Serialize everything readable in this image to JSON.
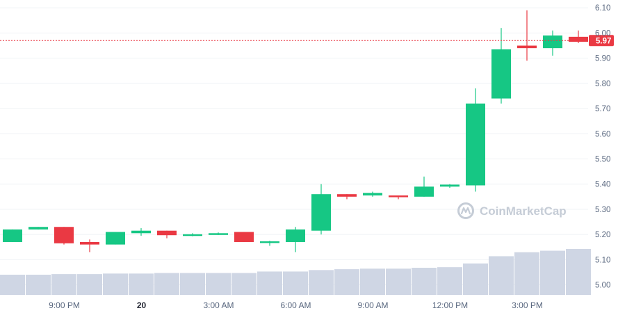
{
  "watermark": "CoinMarketCap",
  "colors": {
    "up": "#16c784",
    "down": "#ea3943",
    "volume": "#cfd6e4",
    "grid": "#eff2f5",
    "axis_text": "#58667e",
    "current_price": "#ea3943"
  },
  "chart_data": {
    "type": "candlestick",
    "y_axis": {
      "ticks": [
        "5.00",
        "5.10",
        "5.20",
        "5.30",
        "5.40",
        "5.50",
        "5.60",
        "5.70",
        "5.80",
        "5.90",
        "6.00",
        "6.10"
      ],
      "ylim": [
        4.96,
        6.12
      ],
      "position": "right"
    },
    "x_axis": {
      "ticks": [
        {
          "label": "9:00 PM",
          "index": 2.5,
          "bold": false
        },
        {
          "label": "20",
          "index": 5.5,
          "bold": true
        },
        {
          "label": "3:00 AM",
          "index": 8.5,
          "bold": false
        },
        {
          "label": "6:00 AM",
          "index": 11.5,
          "bold": false
        },
        {
          "label": "9:00 AM",
          "index": 14.5,
          "bold": false
        },
        {
          "label": "12:00 PM",
          "index": 17.5,
          "bold": false
        },
        {
          "label": "3:00 PM",
          "index": 20.5,
          "bold": false
        }
      ]
    },
    "current_price": "5.97",
    "candles": [
      {
        "o": 5.17,
        "h": 5.22,
        "l": 5.17,
        "c": 5.22
      },
      {
        "o": 5.22,
        "h": 5.23,
        "l": 5.22,
        "c": 5.23
      },
      {
        "o": 5.23,
        "h": 5.23,
        "l": 5.16,
        "c": 5.165
      },
      {
        "o": 5.17,
        "h": 5.18,
        "l": 5.13,
        "c": 5.16
      },
      {
        "o": 5.16,
        "h": 5.21,
        "l": 5.16,
        "c": 5.21
      },
      {
        "o": 5.205,
        "h": 5.225,
        "l": 5.195,
        "c": 5.215
      },
      {
        "o": 5.215,
        "h": 5.215,
        "l": 5.185,
        "c": 5.197
      },
      {
        "o": 5.198,
        "h": 5.205,
        "l": 5.193,
        "c": 5.201
      },
      {
        "o": 5.2,
        "h": 5.208,
        "l": 5.198,
        "c": 5.205
      },
      {
        "o": 5.21,
        "h": 5.21,
        "l": 5.17,
        "c": 5.17
      },
      {
        "o": 5.17,
        "h": 5.175,
        "l": 5.155,
        "c": 5.173
      },
      {
        "o": 5.17,
        "h": 5.23,
        "l": 5.13,
        "c": 5.22
      },
      {
        "o": 5.215,
        "h": 5.4,
        "l": 5.2,
        "c": 5.36
      },
      {
        "o": 5.36,
        "h": 5.36,
        "l": 5.34,
        "c": 5.35
      },
      {
        "o": 5.355,
        "h": 5.37,
        "l": 5.35,
        "c": 5.365
      },
      {
        "o": 5.355,
        "h": 5.355,
        "l": 5.34,
        "c": 5.348
      },
      {
        "o": 5.35,
        "h": 5.43,
        "l": 5.35,
        "c": 5.39
      },
      {
        "o": 5.39,
        "h": 5.4,
        "l": 5.385,
        "c": 5.398
      },
      {
        "o": 5.395,
        "h": 5.78,
        "l": 5.37,
        "c": 5.72
      },
      {
        "o": 5.74,
        "h": 6.02,
        "l": 5.72,
        "c": 5.935
      },
      {
        "o": 5.95,
        "h": 6.09,
        "l": 5.89,
        "c": 5.94
      },
      {
        "o": 5.94,
        "h": 6.01,
        "l": 5.91,
        "c": 5.99
      },
      {
        "o": 5.985,
        "h": 6.01,
        "l": 5.96,
        "c": 5.965
      }
    ],
    "volume": [
      0.07,
      0.07,
      0.072,
      0.072,
      0.074,
      0.074,
      0.076,
      0.076,
      0.076,
      0.076,
      0.081,
      0.081,
      0.086,
      0.089,
      0.091,
      0.091,
      0.094,
      0.096,
      0.109,
      0.134,
      0.148,
      0.153,
      0.159
    ]
  }
}
